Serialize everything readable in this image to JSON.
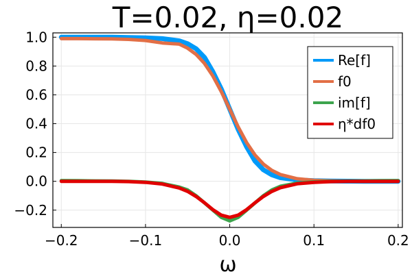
{
  "chart_data": {
    "type": "line",
    "title": "T=0.02, η=0.02",
    "xlabel": "ω",
    "ylabel": "",
    "xlim": [
      -0.21,
      0.205
    ],
    "ylim": [
      -0.32,
      1.03
    ],
    "xticks": [
      -0.2,
      -0.1,
      0.0,
      0.1,
      0.2
    ],
    "xtick_labels": [
      "−0.2",
      "−0.1",
      "0.0",
      "0.1",
      "0.2"
    ],
    "yticks": [
      -0.2,
      0.0,
      0.2,
      0.4,
      0.6,
      0.8,
      1.0
    ],
    "ytick_labels": [
      "−0.2",
      "0.0",
      "0.2",
      "0.4",
      "0.6",
      "0.8",
      "1.0"
    ],
    "grid": true,
    "legend_position": "top-right",
    "x": [
      -0.2,
      -0.18,
      -0.16,
      -0.14,
      -0.12,
      -0.1,
      -0.08,
      -0.06,
      -0.05,
      -0.04,
      -0.03,
      -0.02,
      -0.01,
      0.0,
      0.01,
      0.02,
      0.03,
      0.04,
      0.05,
      0.06,
      0.08,
      0.1,
      0.12,
      0.14,
      0.16,
      0.18,
      0.2
    ],
    "series": [
      {
        "name": "Re[f]",
        "color": "#009af9",
        "width": 7,
        "values": [
          1.0,
          1.0,
          1.0,
          1.0,
          0.998,
          0.996,
          0.99,
          0.975,
          0.955,
          0.92,
          0.86,
          0.76,
          0.64,
          0.5,
          0.36,
          0.24,
          0.14,
          0.08,
          0.045,
          0.025,
          0.01,
          0.004,
          0.002,
          0.001,
          0.0,
          0.0,
          0.0
        ]
      },
      {
        "name": "f0",
        "color": "#e26f46",
        "width": 5,
        "values": [
          0.99,
          0.99,
          0.989,
          0.988,
          0.985,
          0.977,
          0.96,
          0.952,
          0.924,
          0.881,
          0.818,
          0.731,
          0.622,
          0.5,
          0.378,
          0.269,
          0.182,
          0.119,
          0.076,
          0.047,
          0.018,
          0.007,
          0.003,
          0.001,
          0.0,
          0.0,
          0.0
        ]
      },
      {
        "name": "im[f]",
        "color": "#3da44d",
        "width": 5,
        "values": [
          0.005,
          0.004,
          0.003,
          0.002,
          0.0,
          -0.005,
          -0.015,
          -0.04,
          -0.06,
          -0.1,
          -0.15,
          -0.2,
          -0.25,
          -0.275,
          -0.25,
          -0.2,
          -0.15,
          -0.1,
          -0.06,
          -0.035,
          -0.012,
          -0.004,
          0.0,
          0.002,
          0.003,
          0.004,
          0.005
        ]
      },
      {
        "name": "η*df0",
        "color": "#e00000",
        "width": 5,
        "values": [
          0.0,
          0.0,
          0.0,
          0.0,
          -0.002,
          -0.007,
          -0.019,
          -0.046,
          -0.07,
          -0.105,
          -0.149,
          -0.197,
          -0.235,
          -0.25,
          -0.235,
          -0.197,
          -0.149,
          -0.105,
          -0.07,
          -0.045,
          -0.017,
          -0.007,
          -0.002,
          0.0,
          0.0,
          0.0,
          0.0
        ]
      }
    ]
  }
}
